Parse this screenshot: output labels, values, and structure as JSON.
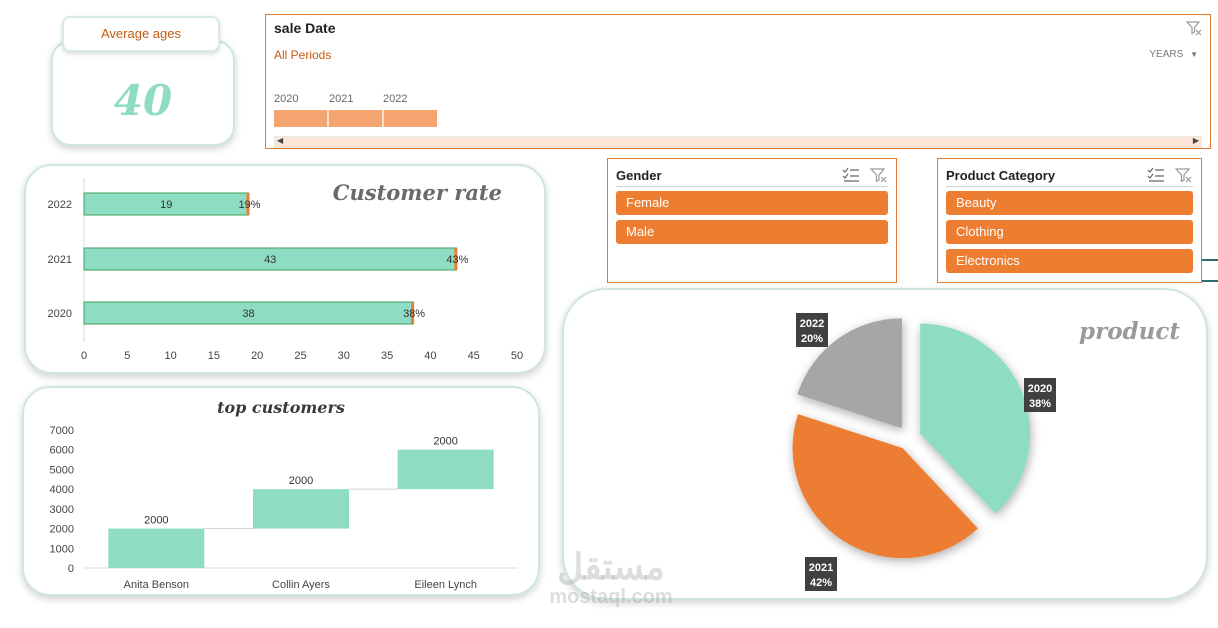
{
  "kpi": {
    "label": "Average ages",
    "value": "40"
  },
  "timeline": {
    "title": "sale Date",
    "period_label": "All Periods",
    "level_label": "YEARS",
    "years": [
      "2020",
      "2021",
      "2022"
    ]
  },
  "gender_slicer": {
    "title": "Gender",
    "items": [
      "Female",
      "Male"
    ]
  },
  "category_slicer": {
    "title": "Product Category",
    "items": [
      "Beauty",
      "Clothing",
      "Electronics"
    ]
  },
  "colors": {
    "teal": "#8fdcc5",
    "orange": "#ed7d31",
    "gray": "#a6a6a6"
  },
  "watermark": {
    "arabic": "مستقل",
    "latin": "mostaql.com"
  },
  "chart_data": [
    {
      "type": "bar",
      "orientation": "horizontal",
      "title": "Customer rate",
      "categories": [
        "2022",
        "2021",
        "2020"
      ],
      "values": [
        19,
        43,
        38
      ],
      "value_labels": [
        "19",
        "43",
        "38"
      ],
      "percent_labels": [
        "19%",
        "43%",
        "38%"
      ],
      "xlim": [
        0,
        50
      ],
      "xticks": [
        0,
        5,
        10,
        15,
        20,
        25,
        30,
        35,
        40,
        45,
        50
      ]
    },
    {
      "type": "waterfall",
      "title": "top customers",
      "categories": [
        "Anita Benson",
        "Collin Ayers",
        "Eileen Lynch"
      ],
      "values": [
        2000,
        2000,
        2000
      ],
      "ylim": [
        0,
        7000
      ],
      "yticks": [
        0,
        1000,
        2000,
        3000,
        4000,
        5000,
        6000,
        7000
      ]
    },
    {
      "type": "pie",
      "title": "product",
      "slices": [
        {
          "year": "2020",
          "percent": "38%",
          "value": 38
        },
        {
          "year": "2021",
          "percent": "42%",
          "value": 42
        },
        {
          "year": "2022",
          "percent": "20%",
          "value": 20
        }
      ]
    }
  ]
}
